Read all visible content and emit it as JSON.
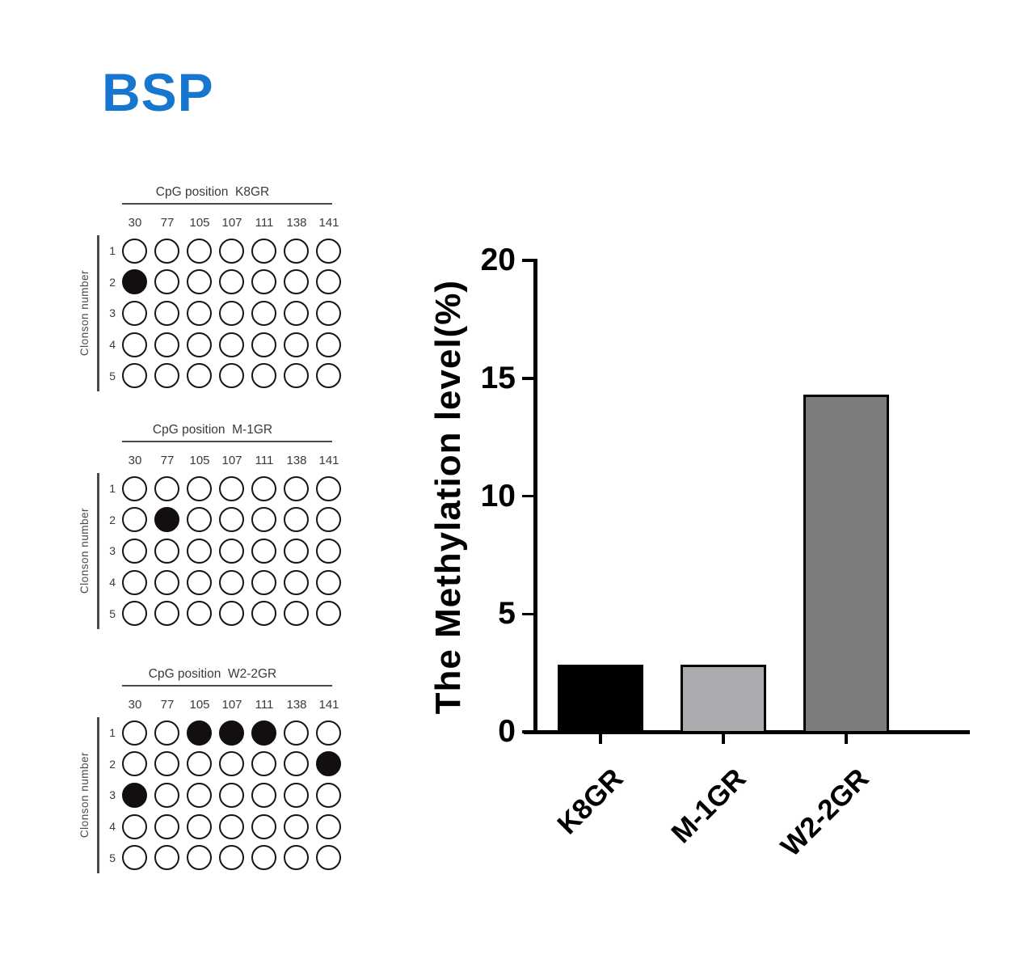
{
  "figure": {
    "title": "BSP",
    "title_color": "#1776CE",
    "background": "#ffffff"
  },
  "chart_data": [
    {
      "type": "bar",
      "title": "",
      "categories": [
        "K8GR",
        "M-1GR",
        "W2-2GR"
      ],
      "values": [
        2.86,
        2.86,
        14.29
      ],
      "ylabel": "The Methylation level(%)",
      "xlabel": "",
      "ylim": [
        0,
        20
      ],
      "yticks": [
        0,
        5,
        10,
        15,
        20
      ],
      "grid": false,
      "legend": false,
      "bar_fill_colors": [
        "#000000",
        "#ABAAAE",
        "#7C7C7C"
      ],
      "bar_border_color": "#000000",
      "axis_color": "#000000"
    },
    {
      "type": "heatmap",
      "subtype": "cpg-methylation-dotplot",
      "title_prefix": "CpG position",
      "sample": "K8GR",
      "columns": [
        "30",
        "77",
        "105",
        "107",
        "111",
        "138",
        "141"
      ],
      "rows": [
        "1",
        "2",
        "3",
        "4",
        "5"
      ],
      "row_axis_label": "Clonson number",
      "filled_cells": [
        [
          2,
          "30"
        ]
      ],
      "open_color": "#ffffff",
      "filled_color": "#130e10",
      "stroke_color": "#161616"
    },
    {
      "type": "heatmap",
      "subtype": "cpg-methylation-dotplot",
      "title_prefix": "CpG position",
      "sample": "M-1GR",
      "columns": [
        "30",
        "77",
        "105",
        "107",
        "111",
        "138",
        "141"
      ],
      "rows": [
        "1",
        "2",
        "3",
        "4",
        "5"
      ],
      "row_axis_label": "Clonson number",
      "filled_cells": [
        [
          2,
          "77"
        ]
      ],
      "open_color": "#ffffff",
      "filled_color": "#130e10",
      "stroke_color": "#161616"
    },
    {
      "type": "heatmap",
      "subtype": "cpg-methylation-dotplot",
      "title_prefix": "CpG position",
      "sample": "W2-2GR",
      "columns": [
        "30",
        "77",
        "105",
        "107",
        "111",
        "138",
        "141"
      ],
      "rows": [
        "1",
        "2",
        "3",
        "4",
        "5"
      ],
      "row_axis_label": "Clonson number",
      "filled_cells": [
        [
          1,
          "105"
        ],
        [
          1,
          "107"
        ],
        [
          1,
          "111"
        ],
        [
          2,
          "141"
        ],
        [
          3,
          "30"
        ]
      ],
      "open_color": "#ffffff",
      "filled_color": "#130e10",
      "stroke_color": "#161616"
    }
  ]
}
